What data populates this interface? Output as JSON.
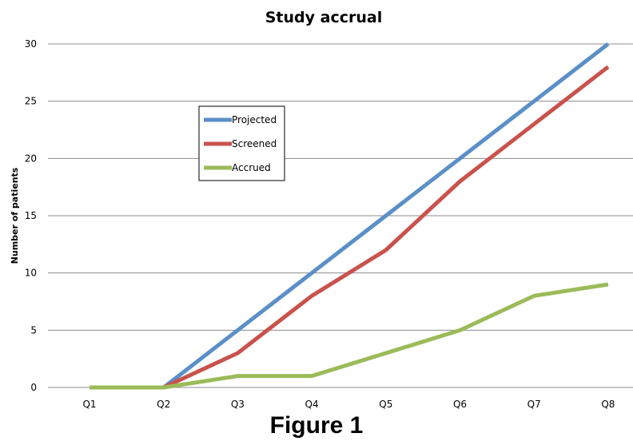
{
  "caption": "Figure 1",
  "chart_data": {
    "type": "line",
    "title": "Study accrual",
    "xlabel": "",
    "ylabel": "Number of patients",
    "categories": [
      "Q1",
      "Q2",
      "Q3",
      "Q4",
      "Q5",
      "Q6",
      "Q7",
      "Q8"
    ],
    "ylim": [
      0,
      30
    ],
    "yticks": [
      0,
      5,
      10,
      15,
      20,
      25,
      30
    ],
    "grid": true,
    "legend_position": "upper-left-inside",
    "series": [
      {
        "name": "Projected",
        "color": "#5b8fc7",
        "values": [
          0,
          0,
          5,
          10,
          15,
          20,
          25,
          30
        ]
      },
      {
        "name": "Screened",
        "color": "#c9524c",
        "values": [
          0,
          0,
          3,
          8,
          12,
          18,
          23,
          28
        ]
      },
      {
        "name": "Accrued",
        "color": "#9bbb59",
        "values": [
          0,
          0,
          1,
          1,
          3,
          5,
          8,
          9
        ]
      }
    ]
  }
}
